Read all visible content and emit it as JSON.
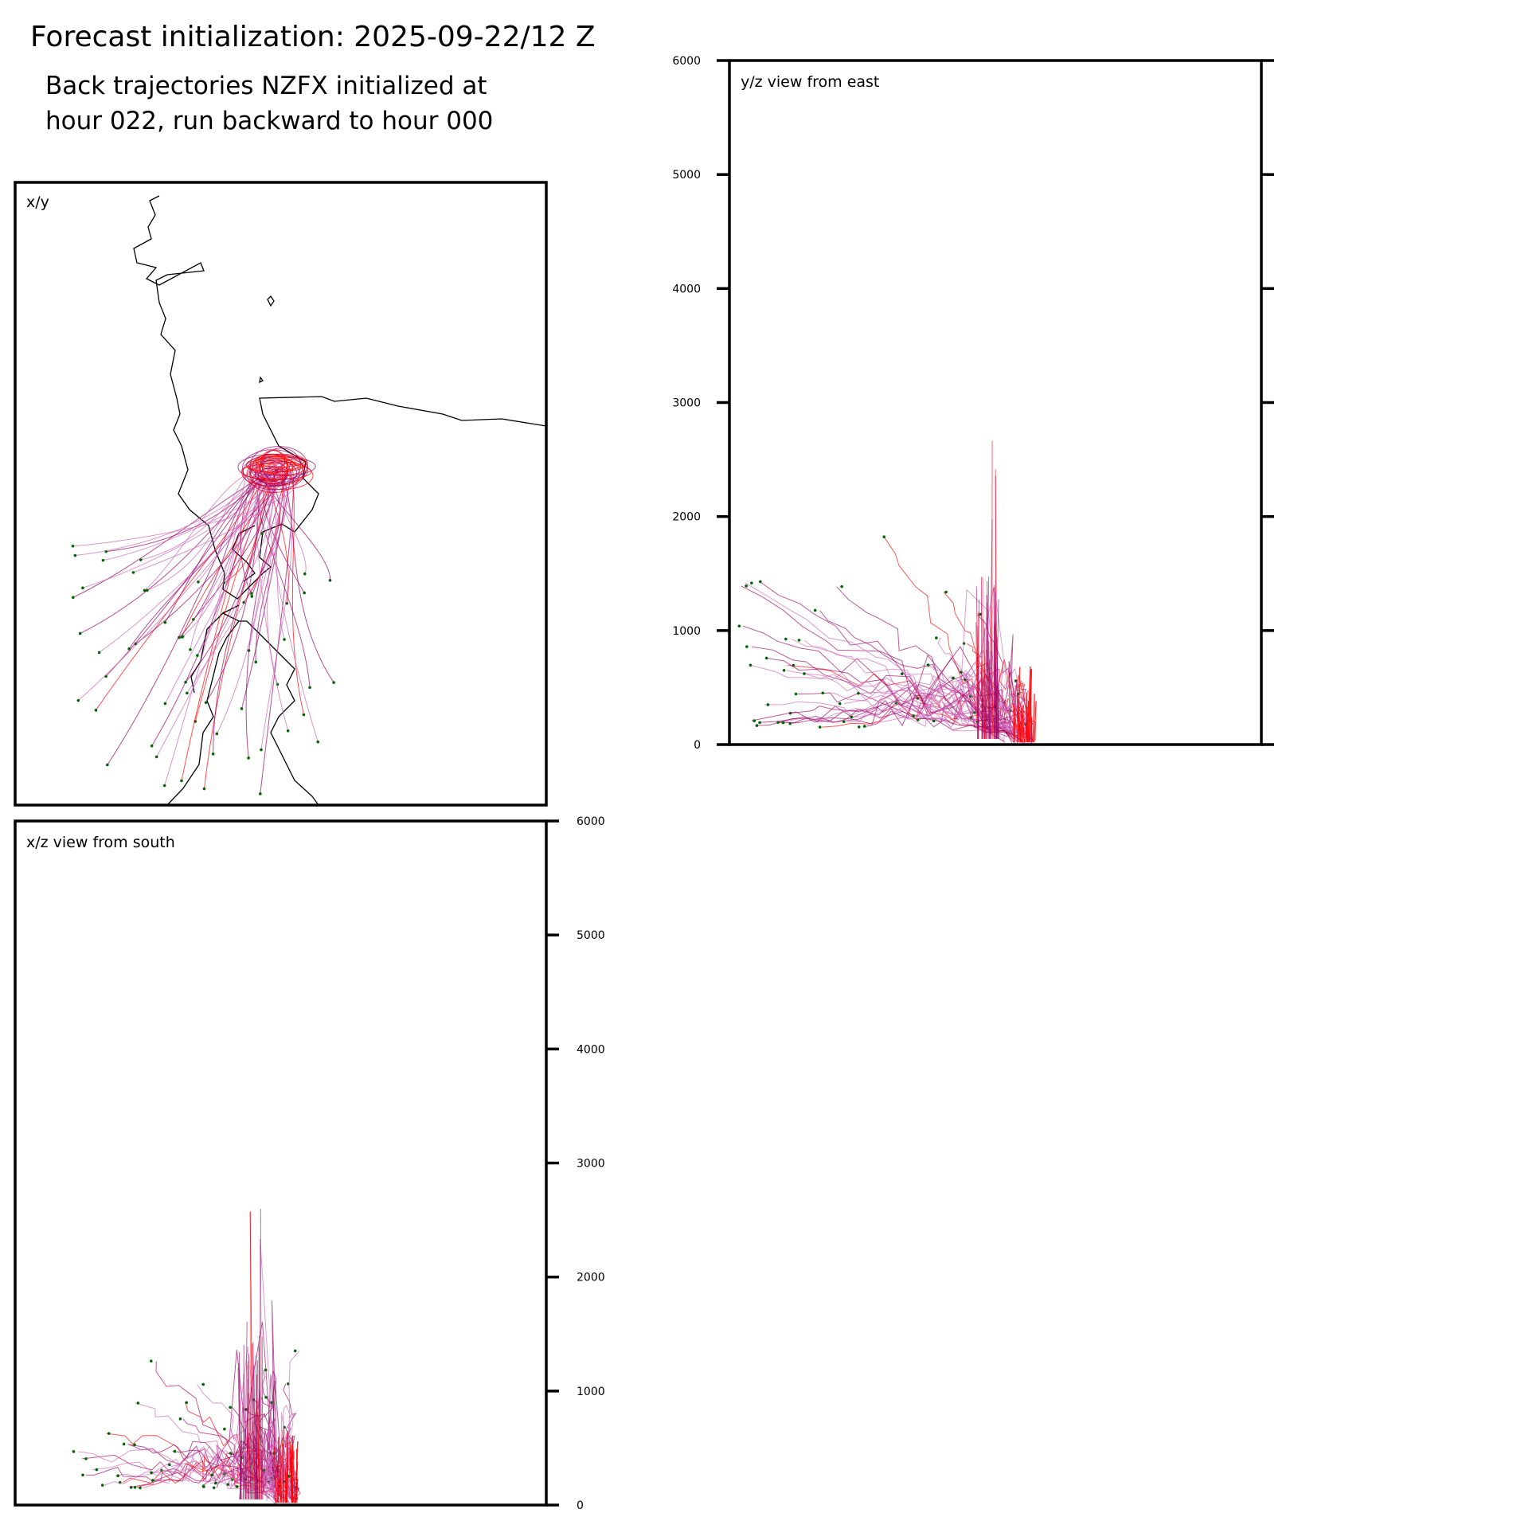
{
  "header": {
    "title": "Forecast initialization: 2025-09-22/12 Z",
    "subtitle_line1": "Back trajectories NZFX initialized at",
    "subtitle_line2": "hour 022, run backward to hour 000"
  },
  "colors": {
    "trajectory_young": "#ff0000",
    "trajectory_mid": "#990066",
    "trajectory_old": "#cc66bb",
    "endpoint": "#006600",
    "coastline": "#000000"
  },
  "chart_data": [
    {
      "panel": "xy",
      "type": "scatter",
      "label": "x/y",
      "description_kind": "map view of trajectories with coastline",
      "source_point": {
        "x": 0.5,
        "y": 0.54
      },
      "trajectory_count": 60
    },
    {
      "panel": "yz",
      "type": "line",
      "label": "y/z view from east",
      "ylim": [
        0,
        6000
      ],
      "yticks": [
        "0",
        "1000",
        "2000",
        "3000",
        "4000",
        "5000",
        "6000"
      ],
      "ticks_side": "left",
      "peak_z": 2700,
      "typical_z_range": [
        100,
        1500
      ]
    },
    {
      "panel": "xz",
      "type": "line",
      "label": "x/z view from south",
      "ylim": [
        0,
        6000
      ],
      "yticks": [
        "0",
        "1000",
        "2000",
        "3000",
        "4000",
        "5000",
        "6000"
      ],
      "ticks_side": "right",
      "peak_z": 2700,
      "typical_z_range": [
        100,
        1500
      ]
    }
  ]
}
